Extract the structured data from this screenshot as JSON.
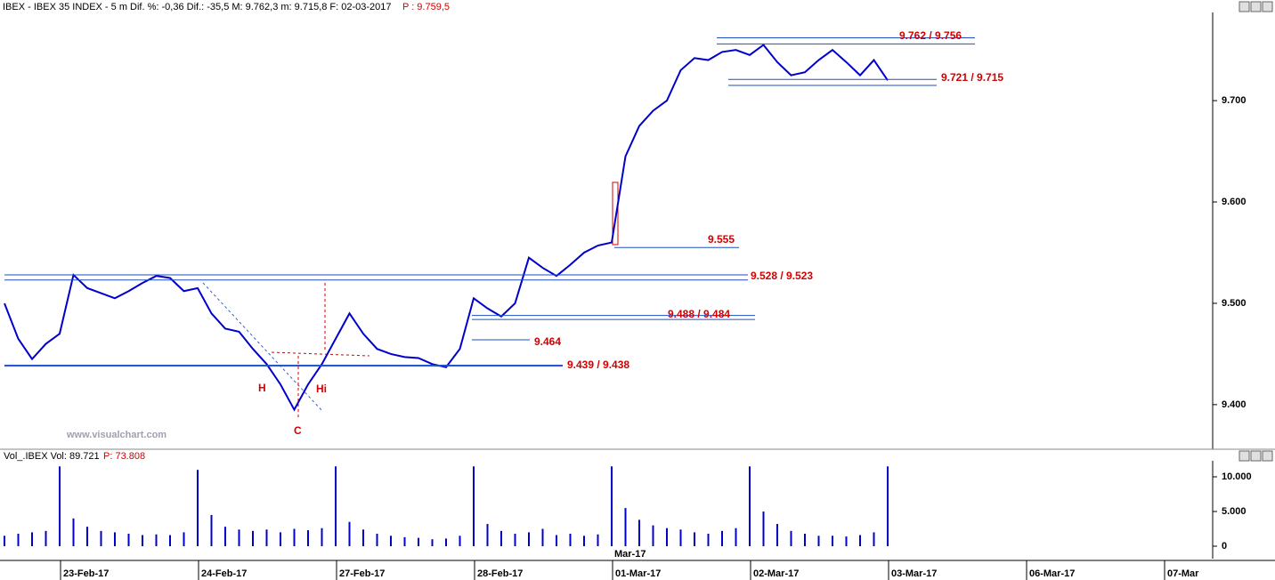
{
  "chart_data": [
    {
      "type": "line",
      "title": "IBEX - IBEX 35 INDEX - 5 m Dif. %: -0,36 Dif.: -35,5 M: 9.762,3 m: 9.715,8 F: 02-03-2017",
      "last_price_label": "P : 9.759,5",
      "watermark": "www.visualchart.com",
      "color": "#0000cc",
      "values": [
        9500,
        9465,
        9445,
        9460,
        9470,
        9528,
        9515,
        9510,
        9505,
        9512,
        9520,
        9527,
        9525,
        9512,
        9515,
        9490,
        9475,
        9472,
        9455,
        9440,
        9420,
        9395,
        9420,
        9440,
        9465,
        9490,
        9470,
        9455,
        9450,
        9447,
        9446,
        9440,
        9437,
        9455,
        9505,
        9495,
        9487,
        9500,
        9545,
        9535,
        9527,
        9538,
        9550,
        9557,
        9560,
        9645,
        9675,
        9690,
        9700,
        9730,
        9742,
        9740,
        9748,
        9750,
        9745,
        9755,
        9738,
        9725,
        9728,
        9740,
        9750,
        9738,
        9725,
        9740,
        9720
      ],
      "ylim": [
        9356,
        9787
      ],
      "yticks": [
        {
          "value": 9400,
          "label": "9.400"
        },
        {
          "value": 9500,
          "label": "9.500"
        },
        {
          "value": 9600,
          "label": "9.600"
        },
        {
          "value": 9700,
          "label": "9.700"
        }
      ],
      "levels": [
        {
          "label": "9.762 / 9.756",
          "values": [
            9762,
            9756
          ]
        },
        {
          "label": "9.721 / 9.715",
          "values": [
            9721,
            9715
          ]
        },
        {
          "label": "9.555",
          "values": [
            9555
          ]
        },
        {
          "label": "9.528 / 9.523",
          "values": [
            9528,
            9523
          ]
        },
        {
          "label": "9.488 / 9.484",
          "values": [
            9488,
            9484
          ]
        },
        {
          "label": "9.464",
          "values": [
            9464
          ]
        },
        {
          "label": "9.439 / 9.438",
          "values": [
            9439,
            9438
          ]
        }
      ],
      "pattern_labels": [
        "H",
        "Hi",
        "C"
      ]
    },
    {
      "type": "bar",
      "title": "Vol_.IBEX Vol: 89.721",
      "last_value_label": "P: 73.808",
      "color": "#0000cc",
      "values": [
        1500,
        1800,
        2000,
        2200,
        11500,
        4000,
        2800,
        2200,
        2000,
        1800,
        1600,
        1700,
        1600,
        2000,
        11000,
        4500,
        2800,
        2400,
        2200,
        2400,
        2000,
        2500,
        2300,
        2600,
        11500,
        3500,
        2400,
        1800,
        1500,
        1300,
        1200,
        1000,
        1100,
        1500,
        11500,
        3200,
        2200,
        1800,
        2000,
        2500,
        1600,
        1800,
        1500,
        1700,
        11500,
        5500,
        3800,
        3000,
        2600,
        2400,
        2000,
        1800,
        2200,
        2600,
        11500,
        5000,
        3200,
        2200,
        1800,
        1500,
        1500,
        1400,
        1600,
        2000,
        11500
      ],
      "ylim": [
        -1795,
        12308
      ],
      "yticks": [
        0,
        {
          "value": 5000,
          "label": "5.000"
        },
        {
          "value": 10000,
          "label": "10.000"
        }
      ],
      "month_label": "Mar-17",
      "date_labels": [
        "23-Feb-17",
        "24-Feb-17",
        "27-Feb-17",
        "28-Feb-17",
        "01-Mar-17",
        "02-Mar-17",
        "03-Mar-17",
        "06-Mar-17",
        "07-Mar"
      ]
    }
  ]
}
